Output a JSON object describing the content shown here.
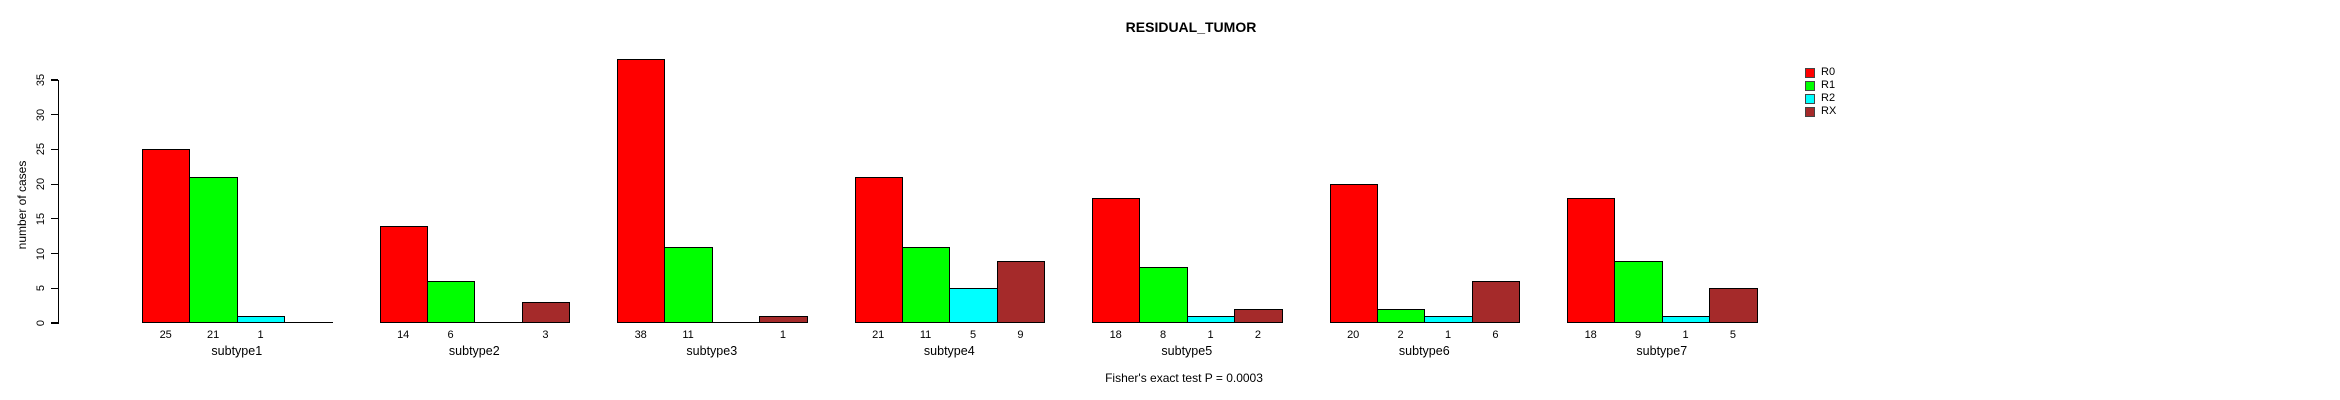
{
  "title": "RESIDUAL_TUMOR",
  "footnote": "Fisher's exact test P = 0.0003",
  "chart_data": {
    "type": "bar",
    "title": "RESIDUAL_TUMOR",
    "xlabel": "",
    "ylabel": "number of cases",
    "categories": [
      "subtype1",
      "subtype2",
      "subtype3",
      "subtype4",
      "subtype5",
      "subtype6",
      "subtype7"
    ],
    "series": [
      {
        "name": "R0",
        "color": "#ff0000",
        "values": [
          25,
          14,
          38,
          21,
          18,
          20,
          18
        ]
      },
      {
        "name": "R1",
        "color": "#00ff00",
        "values": [
          21,
          6,
          11,
          11,
          8,
          2,
          9
        ]
      },
      {
        "name": "R2",
        "color": "#00ffff",
        "values": [
          1,
          0,
          0,
          5,
          1,
          1,
          1
        ]
      },
      {
        "name": "RX",
        "color": "#a52a2a",
        "values": [
          0,
          3,
          1,
          9,
          2,
          6,
          5
        ]
      }
    ],
    "bar_value_labels": "shown under each bar; zero values shown as blank",
    "yticks": [
      0,
      5,
      10,
      15,
      20,
      25,
      30,
      35
    ],
    "ylim": [
      0,
      35
    ],
    "grid": false,
    "legend_position": "top-right outside plot",
    "annotation": "Fisher's exact test P = 0.0003",
    "bar_border_color": "#000000",
    "background_color": "#ffffff"
  }
}
